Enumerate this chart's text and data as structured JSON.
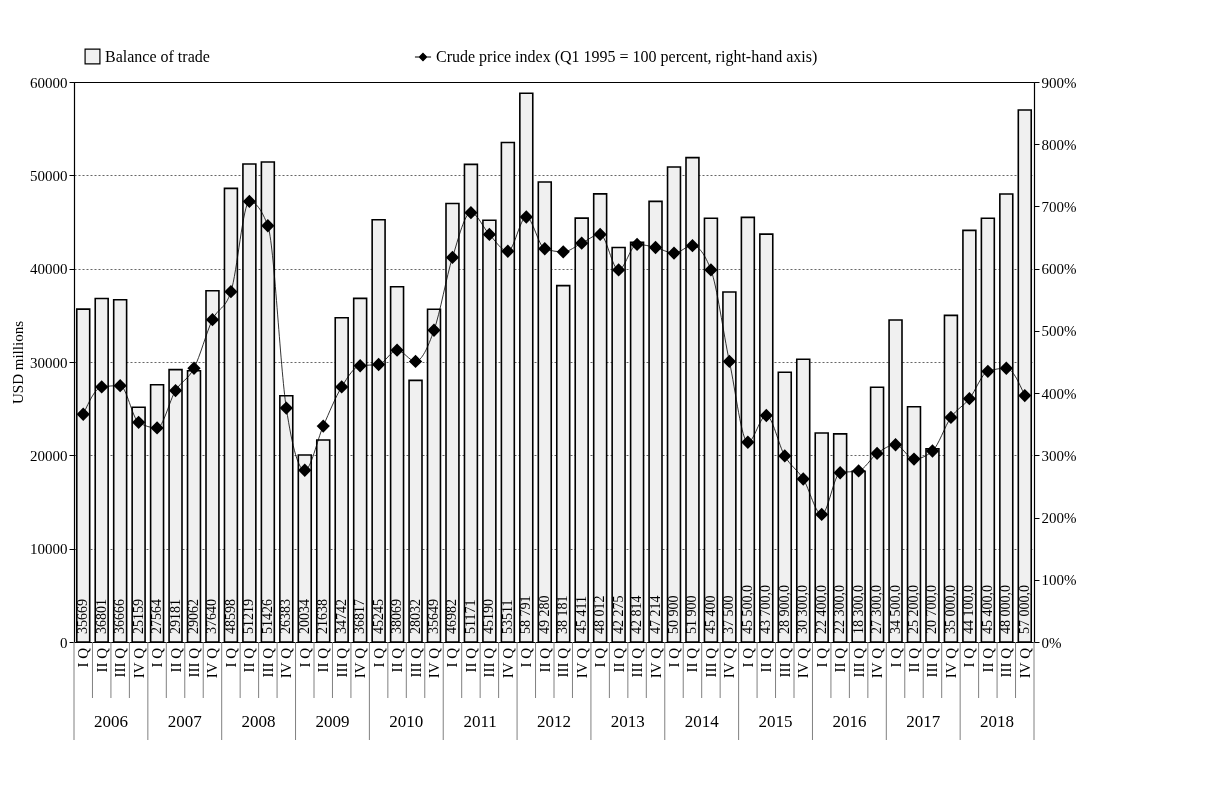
{
  "chart_data": {
    "type": "bar",
    "ylabel": "USD millions",
    "categories": [
      "I Q",
      "II Q",
      "III Q",
      "IV Q",
      "I Q",
      "II Q",
      "III Q",
      "IV Q",
      "I Q",
      "II Q",
      "III Q",
      "IV Q",
      "I Q",
      "II Q",
      "III Q",
      "IV Q",
      "I Q",
      "II Q",
      "III Q",
      "IV Q",
      "I Q",
      "II Q",
      "III Q",
      "IV Q",
      "I Q",
      "II Q",
      "III Q",
      "IV Q",
      "I Q",
      "II Q",
      "III Q",
      "IV Q",
      "I Q",
      "II Q",
      "III Q",
      "IV Q",
      "I Q",
      "II Q",
      "III Q",
      "IV Q",
      "I Q",
      "II Q",
      "III Q",
      "IV Q",
      "I Q",
      "II Q",
      "III Q",
      "IV Q",
      "I Q",
      "II Q",
      "III Q",
      "IV Q"
    ],
    "series": [
      {
        "name": "Balance of trade",
        "color": "#f0f0f0",
        "values": [
          35669,
          36801,
          36666,
          25159,
          27564,
          29181,
          29062,
          37640,
          48598,
          51219,
          51426,
          26383,
          20034,
          21638,
          34742,
          36817,
          45245,
          38069,
          28032,
          35649,
          46982,
          51171,
          45190,
          53511,
          58791,
          49280,
          38181,
          45411,
          48012,
          42275,
          42814,
          47214,
          50900,
          51900,
          45400,
          37500,
          45500,
          43700,
          28900,
          30300,
          22400,
          22300,
          18300,
          27300,
          34500,
          25200,
          20700,
          35000,
          44100,
          45400,
          48000,
          57000
        ],
        "value_labels": [
          "35669",
          "36801",
          "36666",
          "25159",
          "27564",
          "29181",
          "29062",
          "37640",
          "48598",
          "51219",
          "51426",
          "26383",
          "20034",
          "21638",
          "34742",
          "36817",
          "45245",
          "38069",
          "28032",
          "35649",
          "46982",
          "51171",
          "45190",
          "53511",
          "58 791",
          "49 280",
          "38 181",
          "45 411",
          "48 012",
          "42 275",
          "42 814",
          "47 214",
          "50 900",
          "51 900",
          "45 400",
          "37 500",
          "45 500,0",
          "43 700,0",
          "28 900,0",
          "30 300,0",
          "22 400,0",
          "22 300,0",
          "18 300,0",
          "27 300,0",
          "34 500,0",
          "25 200,0",
          "20 700,0",
          "35 000,0",
          "44 100,0",
          "45 400,0",
          "48 000,0",
          "57 000,0"
        ]
      },
      {
        "name": "Crude price index (Q1 1995 = 100 percent, right-hand axis)",
        "color": "#000000",
        "type": "line",
        "axis": "y2",
        "marker": "diamond",
        "values": [
          366,
          410,
          412,
          353,
          344,
          404,
          440,
          518,
          563,
          708,
          669,
          376,
          276,
          347,
          410,
          444,
          446,
          469,
          451,
          501,
          618,
          690,
          655,
          628,
          683,
          632,
          627,
          641,
          655,
          598,
          639,
          634,
          625,
          637,
          598,
          451,
          321,
          364,
          299,
          262,
          205,
          272,
          275,
          303,
          317,
          294,
          307,
          361,
          391,
          435,
          440,
          396
        ]
      }
    ],
    "ylim": [
      0,
      60000
    ],
    "yticks": [
      0,
      10000,
      20000,
      30000,
      40000,
      50000,
      60000
    ],
    "y2lim": [
      0,
      900
    ],
    "y2ticks": [
      {
        "value": 0,
        "label": "0%"
      },
      {
        "value": 100,
        "label": "100%"
      },
      {
        "value": 200,
        "label": "200%"
      },
      {
        "value": 300,
        "label": "300%"
      },
      {
        "value": 400,
        "label": "400%"
      },
      {
        "value": 500,
        "label": "500%"
      },
      {
        "value": 600,
        "label": "600%"
      },
      {
        "value": 700,
        "label": "700%"
      },
      {
        "value": 800,
        "label": "800%"
      },
      {
        "value": 900,
        "label": "900%"
      }
    ],
    "grid": "y",
    "legend": "top left",
    "annotations": [
      "2006",
      "2007",
      "2008",
      "2009",
      "2010",
      "2011",
      "2012",
      "2013",
      "2014",
      "2015",
      "2016",
      "2017",
      "2018"
    ]
  }
}
